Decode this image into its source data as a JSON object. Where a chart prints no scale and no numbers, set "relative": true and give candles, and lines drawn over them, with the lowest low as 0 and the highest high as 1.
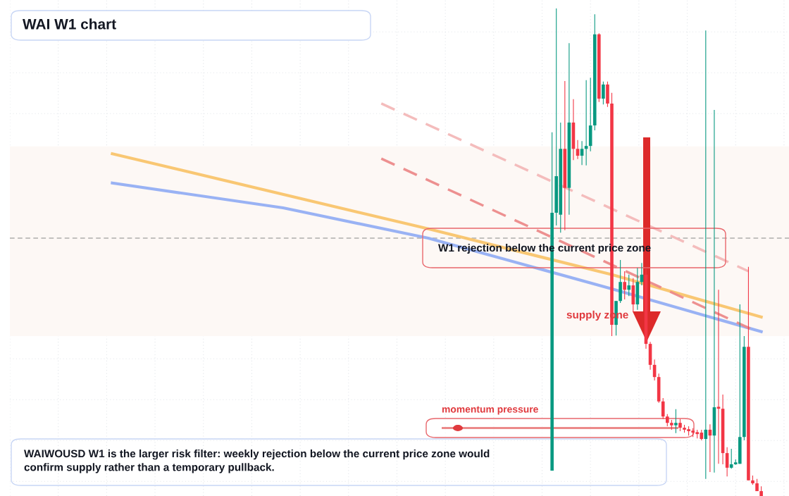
{
  "chart_data": {
    "type": "candlestick",
    "title": "WAI W1 chart",
    "relative": true,
    "grid": true,
    "categories": [
      null,
      null,
      null,
      null,
      null,
      null,
      null,
      null,
      null,
      null,
      null,
      null,
      null,
      null,
      null,
      null,
      null,
      null,
      null,
      null,
      null,
      null,
      null,
      null,
      null,
      null,
      null,
      null,
      null,
      null,
      null,
      null,
      null,
      null,
      null,
      null,
      null,
      null,
      null,
      null,
      null,
      null,
      null,
      null,
      null,
      null,
      null,
      null,
      null,
      null,
      null,
      null,
      null,
      null,
      null,
      null,
      null,
      null,
      null,
      null,
      null,
      null,
      null,
      null,
      null,
      null,
      null,
      null,
      null,
      null,
      null,
      null,
      null,
      null,
      null,
      null,
      null,
      null,
      null,
      null,
      null,
      null,
      null,
      null,
      null,
      null,
      null,
      null,
      null,
      null,
      null,
      null,
      null,
      null,
      null,
      null,
      null,
      null,
      null,
      null,
      null,
      null,
      null,
      null,
      null,
      null,
      null,
      null,
      null,
      null,
      null,
      null,
      null,
      null,
      null,
      null,
      null,
      null,
      null,
      null,
      null,
      null,
      null,
      null,
      null,
      null,
      null,
      null,
      null,
      null,
      null,
      null,
      null,
      null,
      null,
      null,
      null,
      null,
      null,
      null,
      null,
      null,
      null,
      null,
      null,
      null,
      null,
      null,
      null,
      null,
      null,
      null,
      null,
      null
    ],
    "ohlc": [
      null,
      null,
      null,
      null,
      null,
      null,
      null,
      null,
      null,
      null,
      null,
      null,
      null,
      null,
      null,
      null,
      null,
      null,
      null,
      null,
      null,
      null,
      null,
      null,
      null,
      null,
      null,
      null,
      null,
      null,
      null,
      null,
      null,
      null,
      null,
      null,
      null,
      null,
      null,
      null,
      null,
      null,
      null,
      null,
      null,
      null,
      null,
      null,
      null,
      null,
      null,
      null,
      null,
      null,
      null,
      null,
      null,
      null,
      null,
      null,
      null,
      null,
      null,
      null,
      null,
      null,
      null,
      null,
      null,
      null,
      null,
      null,
      null,
      null,
      null,
      null,
      null,
      null,
      null,
      null,
      null,
      null,
      null,
      null,
      null,
      null,
      null,
      null,
      null,
      null,
      null,
      null,
      null,
      null,
      null,
      null,
      null,
      null,
      null,
      null,
      null,
      null,
      null,
      null,
      [
        0.052,
        0.746,
        0.052,
        0.581
      ],
      [
        0.581,
        1.0,
        0.555,
        0.656
      ],
      [
        0.577,
        0.766,
        0.54,
        0.712
      ],
      [
        0.712,
        0.851,
        0.545,
        0.632
      ],
      [
        0.632,
        0.929,
        0.577,
        0.766
      ],
      [
        0.766,
        0.814,
        0.689,
        0.712
      ],
      [
        0.712,
        0.73,
        0.691,
        0.698
      ],
      [
        0.698,
        0.728,
        0.679,
        0.712
      ],
      [
        0.712,
        0.853,
        0.678,
        0.718
      ],
      [
        0.718,
        0.858,
        0.707,
        0.76
      ],
      [
        0.76,
        0.988,
        0.75,
        0.947
      ],
      [
        0.947,
        0.949,
        0.808,
        0.815
      ],
      [
        0.815,
        0.85,
        0.803,
        0.844
      ],
      [
        0.844,
        0.85,
        0.798,
        0.805
      ],
      [
        0.805,
        0.827,
        0.328,
        0.351
      ],
      [
        0.351,
        0.4,
        0.329,
        0.4
      ],
      [
        0.4,
        0.484,
        0.396,
        0.439
      ],
      [
        0.439,
        0.461,
        0.403,
        0.423
      ],
      [
        0.423,
        0.454,
        0.41,
        0.432
      ],
      [
        0.432,
        0.447,
        0.377,
        0.393
      ],
      [
        0.393,
        0.468,
        0.382,
        0.439
      ],
      [
        0.439,
        0.478,
        0.432,
        0.454
      ],
      [
        0.454,
        0.468,
        0.302,
        0.312
      ],
      [
        0.312,
        0.316,
        0.259,
        0.269
      ],
      [
        0.269,
        0.28,
        0.237,
        0.244
      ],
      [
        0.244,
        0.251,
        0.191,
        0.194
      ],
      [
        0.194,
        0.201,
        0.158,
        0.163
      ],
      [
        0.163,
        0.168,
        0.143,
        0.15
      ],
      [
        0.15,
        0.156,
        0.136,
        0.145
      ],
      [
        0.145,
        0.178,
        0.129,
        0.15
      ],
      [
        0.15,
        0.158,
        0.133,
        0.14
      ],
      [
        0.14,
        0.146,
        0.13,
        0.136
      ],
      [
        0.136,
        0.143,
        0.124,
        0.133
      ],
      [
        0.133,
        0.139,
        0.121,
        0.13
      ],
      [
        0.13,
        0.136,
        0.118,
        0.127
      ],
      [
        0.13,
        0.136,
        0.114,
        0.117
      ],
      [
        0.117,
        0.955,
        0.035,
        0.136
      ],
      [
        0.136,
        0.147,
        0.049,
        0.124
      ],
      [
        0.124,
        0.792,
        0.048,
        0.182
      ],
      [
        0.182,
        0.423,
        0.066,
        0.179
      ],
      [
        0.179,
        0.208,
        0.065,
        0.088
      ],
      [
        0.088,
        0.1,
        0.04,
        0.058
      ],
      [
        0.058,
        0.097,
        0.056,
        0.065
      ],
      [
        0.065,
        0.075,
        0.064,
        0.068
      ],
      [
        0.066,
        0.393,
        0.066,
        0.121
      ],
      [
        0.121,
        0.328,
        0.114,
        0.306
      ],
      [
        0.306,
        0.47,
        0.032,
        0.032
      ],
      [
        0.032,
        0.042,
        0.023,
        0.026
      ],
      [
        0.026,
        0.035,
        0.01,
        0.01
      ],
      [
        0.01,
        0.02,
        0.0,
        0.0
      ]
    ],
    "series": [
      {
        "type": "line",
        "color": "#f9c46b",
        "values": [
          null,
          0.702,
          null,
          null,
          null,
          null,
          null,
          null,
          null,
          null,
          null,
          null,
          null,
          null,
          null,
          null,
          null,
          null,
          null,
          null,
          null,
          null,
          null,
          null,
          null,
          null,
          null,
          null,
          null,
          null,
          null,
          null,
          null,
          null,
          null,
          null,
          null,
          null,
          null,
          null,
          null,
          null,
          null,
          null,
          null,
          null,
          null,
          null,
          null,
          null,
          null,
          null,
          null,
          null,
          null,
          null,
          null,
          null,
          null,
          null,
          null,
          null,
          null,
          null,
          null,
          null,
          null,
          null,
          null,
          null,
          null,
          null,
          null,
          null,
          null,
          0.548,
          null,
          null,
          null,
          null,
          null,
          null,
          null,
          null,
          null,
          null,
          null,
          null,
          null,
          null,
          null,
          null,
          null,
          null,
          null,
          null,
          null,
          null,
          null,
          null,
          null,
          null,
          null,
          null,
          null,
          null,
          null,
          null,
          null,
          null,
          null,
          null,
          null,
          null,
          null,
          null,
          null,
          null,
          0.454,
          null,
          null,
          null,
          null,
          null,
          null,
          null,
          null,
          null,
          null,
          null,
          null,
          null,
          null,
          null,
          null,
          null,
          null,
          null,
          null,
          null,
          null,
          null,
          null,
          null,
          null,
          null,
          null,
          null,
          null,
          null,
          null,
          null,
          null,
          0.367
        ]
      },
      {
        "type": "line",
        "color": "#93aef3",
        "values": [
          null,
          0.642,
          null,
          null,
          null,
          null,
          null,
          null,
          null,
          null,
          null,
          null,
          null,
          null,
          null,
          null,
          null,
          null,
          null,
          null,
          null,
          null,
          null,
          null,
          null,
          null,
          null,
          null,
          null,
          null,
          null,
          null,
          null,
          null,
          null,
          null,
          null,
          null,
          null,
          null,
          null,
          0.591,
          null,
          null,
          null,
          null,
          null,
          null,
          null,
          null,
          null,
          null,
          null,
          null,
          null,
          null,
          null,
          null,
          null,
          null,
          null,
          null,
          null,
          null,
          null,
          null,
          null,
          null,
          null,
          null,
          null,
          null,
          null,
          null,
          null,
          0.529,
          null,
          null,
          null,
          null,
          null,
          null,
          null,
          null,
          null,
          null,
          null,
          null,
          null,
          null,
          null,
          null,
          null,
          null,
          null,
          null,
          null,
          null,
          null,
          null,
          null,
          null,
          null,
          null,
          null,
          null,
          null,
          null,
          null,
          null,
          null,
          null,
          null,
          null,
          null,
          null,
          null,
          null,
          0.425,
          null,
          null,
          null,
          null,
          null,
          null,
          null,
          null,
          null,
          null,
          null,
          null,
          null,
          null,
          null,
          null,
          null,
          null,
          null,
          null,
          null,
          null,
          null,
          null,
          null,
          null,
          null,
          null,
          null,
          null,
          null,
          null,
          null,
          null,
          0.337
        ]
      },
      {
        "type": "line",
        "color": "#ec8a8a",
        "line_style": "dashed",
        "values": [
          null,
          null,
          null,
          null,
          null,
          null,
          null,
          null,
          null,
          null,
          null,
          null,
          null,
          null,
          null,
          null,
          null,
          null,
          null,
          null,
          null,
          null,
          null,
          null,
          null,
          null,
          null,
          null,
          null,
          null,
          null,
          null,
          null,
          null,
          null,
          null,
          null,
          null,
          null,
          null,
          null,
          null,
          null,
          null,
          null,
          null,
          null,
          null,
          null,
          null,
          null,
          null,
          null,
          null,
          null,
          null,
          null,
          null,
          null,
          null,
          null,
          null,
          null,
          null,
          0.692,
          null,
          null,
          null,
          null,
          null,
          null,
          null,
          null,
          null,
          null,
          null,
          null,
          null,
          null,
          null,
          null,
          null,
          null,
          null,
          null,
          null,
          null,
          null,
          null,
          null,
          null,
          null,
          null,
          null,
          null,
          null,
          null,
          null,
          null,
          null,
          null,
          null,
          null,
          null,
          null,
          null,
          null,
          null,
          null,
          null,
          null,
          null,
          null,
          null,
          null,
          null,
          null,
          null,
          null,
          null,
          null,
          null,
          null,
          null,
          null,
          null,
          null,
          null,
          null,
          null,
          null,
          null,
          null,
          null,
          null,
          null,
          null,
          null,
          null,
          null,
          null,
          null,
          null,
          null,
          null,
          null,
          null,
          null,
          null,
          null,
          null,
          0.341,
          null,
          null
        ]
      },
      {
        "type": "line",
        "color": "#f3b8b8",
        "line_style": "dashed",
        "values": [
          null,
          null,
          null,
          null,
          null,
          null,
          null,
          null,
          null,
          null,
          null,
          null,
          null,
          null,
          null,
          null,
          null,
          null,
          null,
          null,
          null,
          null,
          null,
          null,
          null,
          null,
          null,
          null,
          null,
          null,
          null,
          null,
          null,
          null,
          null,
          null,
          null,
          null,
          null,
          null,
          null,
          null,
          null,
          null,
          null,
          null,
          null,
          null,
          null,
          null,
          null,
          null,
          null,
          null,
          null,
          null,
          null,
          null,
          null,
          null,
          null,
          null,
          null,
          null,
          0.805,
          null,
          null,
          null,
          null,
          null,
          null,
          null,
          null,
          null,
          null,
          null,
          null,
          null,
          null,
          null,
          null,
          null,
          null,
          null,
          null,
          null,
          null,
          null,
          null,
          null,
          null,
          null,
          null,
          null,
          null,
          null,
          null,
          null,
          null,
          null,
          null,
          null,
          null,
          null,
          null,
          null,
          null,
          null,
          null,
          null,
          null,
          null,
          null,
          null,
          null,
          null,
          null,
          null,
          null,
          null,
          null,
          null,
          null,
          null,
          null,
          null,
          null,
          null,
          null,
          null,
          null,
          null,
          null,
          null,
          null,
          null,
          null,
          null,
          null,
          null,
          null,
          null,
          null,
          null,
          null,
          null,
          null,
          null,
          null,
          null,
          0.461,
          null,
          null,
          null
        ]
      }
    ],
    "bands": [
      {
        "axis": "y",
        "from": 0.328,
        "to": 0.717,
        "color": "#fdf8f5"
      }
    ],
    "ref_lines": [
      {
        "axis": "y",
        "value": 0.529,
        "color": "#888888",
        "line_style": "dashed"
      }
    ],
    "annotations": [
      "W1 rejection below the current price zone",
      "supply zone",
      "momentum pressure",
      "WAIWOUSD W1 is the larger risk filter: weekly rejection below the current price zone would confirm supply rather than a temporary pullback."
    ]
  }
}
